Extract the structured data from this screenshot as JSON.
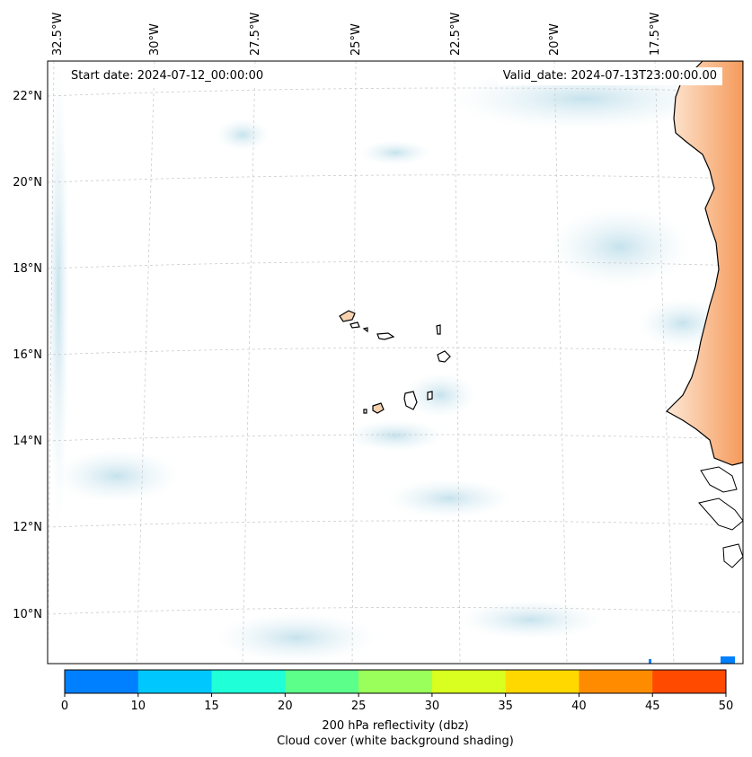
{
  "map": {
    "start_date": "Start date: 2024-07-12_00:00:00",
    "valid_date": "Valid_date: 2024-07-13T23:00:00.00",
    "lon_labels": [
      "32.5°W",
      "30°W",
      "27.5°W",
      "25°W",
      "22.5°W",
      "20°W",
      "17.5°W"
    ],
    "lat_labels": [
      "22°N",
      "20°N",
      "18°N",
      "16°N",
      "14°N",
      "12°N",
      "10°N"
    ],
    "gridlines": true,
    "land_color": "#f6d2b0",
    "coastline_color": "#000000",
    "cloud_shading_color": "#cfe6ef"
  },
  "colorbar": {
    "label": "200 hPa reflectivity (dbz)",
    "sublabel": "Cloud cover (white background shading)",
    "ticks": [
      "0",
      "10",
      "15",
      "20",
      "25",
      "30",
      "35",
      "40",
      "45",
      "50"
    ],
    "colors": [
      "#0080ff",
      "#00c8ff",
      "#1fffd8",
      "#5cff8a",
      "#9aff5a",
      "#d8ff1f",
      "#ffd800",
      "#ff8c00",
      "#ff4a00"
    ]
  }
}
